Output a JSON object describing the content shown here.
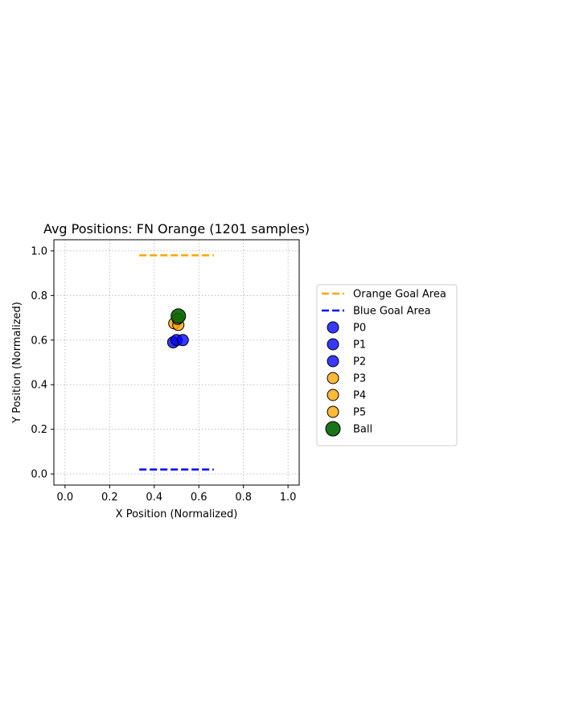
{
  "chart_data": {
    "type": "scatter",
    "title": "Avg Positions: FN Orange (1201 samples)",
    "xlabel": "X Position (Normalized)",
    "ylabel": "Y Position (Normalized)",
    "xlim": [
      -0.05,
      1.05
    ],
    "ylim": [
      -0.05,
      1.05
    ],
    "xticks": [
      "0.0",
      "0.2",
      "0.4",
      "0.6",
      "0.8",
      "1.0"
    ],
    "yticks": [
      "0.0",
      "0.2",
      "0.4",
      "0.6",
      "0.8",
      "1.0"
    ],
    "grid": true,
    "legend_placement": "right-outside",
    "lines": [
      {
        "name": "Orange Goal Area",
        "color": "#ffa500",
        "style": "dashed",
        "x": [
          0.333,
          0.667
        ],
        "y": [
          0.98,
          0.98
        ]
      },
      {
        "name": "Blue Goal Area",
        "color": "#0000ff",
        "style": "dashed",
        "x": [
          0.333,
          0.667
        ],
        "y": [
          0.02,
          0.02
        ]
      }
    ],
    "series": [
      {
        "name": "P0",
        "color": "#0000ff",
        "x": 0.485,
        "y": 0.59
      },
      {
        "name": "P1",
        "color": "#0000ff",
        "x": 0.5,
        "y": 0.6
      },
      {
        "name": "P2",
        "color": "#0000ff",
        "x": 0.528,
        "y": 0.6
      },
      {
        "name": "P3",
        "color": "#ffa500",
        "x": 0.49,
        "y": 0.675
      },
      {
        "name": "P4",
        "color": "#ffa500",
        "x": 0.508,
        "y": 0.668
      },
      {
        "name": "P5",
        "color": "#ffa500",
        "x": 0.505,
        "y": 0.695
      },
      {
        "name": "Ball",
        "color": "#006400",
        "x": 0.508,
        "y": 0.708
      }
    ]
  }
}
